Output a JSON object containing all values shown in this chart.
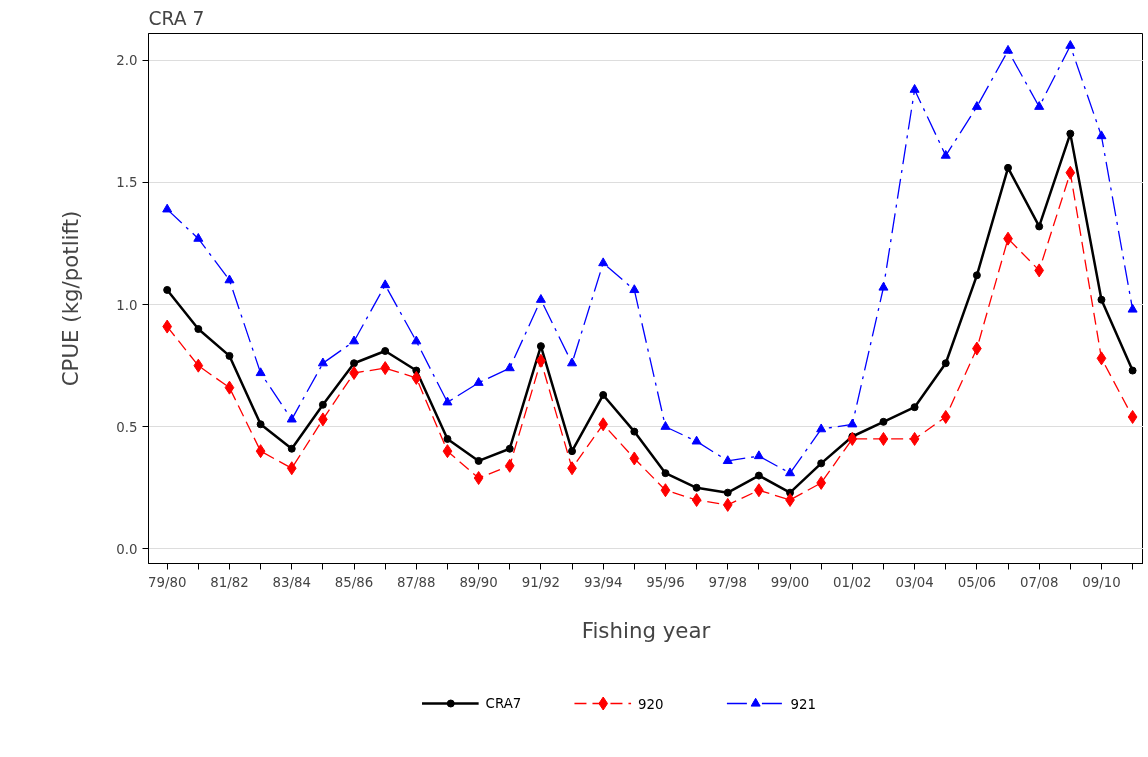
{
  "chart_data": {
    "type": "line",
    "title": "CRA 7",
    "xlabel": "Fishing year",
    "ylabel": "CPUE (kg/potlift)",
    "categories": [
      "79/80",
      null,
      "81/82",
      null,
      "83/84",
      null,
      "85/86",
      null,
      "87/88",
      null,
      "89/90",
      null,
      "91/92",
      null,
      "93/94",
      null,
      "95/96",
      null,
      "97/98",
      null,
      "99/00",
      null,
      "01/02",
      null,
      "03/04",
      null,
      "05/06",
      null,
      "07/08",
      null,
      "09/10",
      null
    ],
    "series": [
      {
        "name": "CRA7",
        "color": "#000000",
        "marker": "circle",
        "line_style": "solid",
        "values": [
          1.06,
          0.9,
          0.79,
          0.51,
          0.41,
          0.59,
          0.76,
          0.81,
          0.73,
          0.45,
          0.36,
          0.41,
          0.83,
          0.4,
          0.63,
          0.48,
          0.31,
          0.25,
          0.23,
          0.3,
          0.23,
          0.35,
          0.46,
          0.52,
          0.58,
          0.76,
          1.12,
          1.56,
          1.32,
          1.7,
          1.02,
          0.73
        ]
      },
      {
        "name": "920",
        "color": "#ff0000",
        "marker": "diamond",
        "line_style": "dashed",
        "values": [
          0.91,
          0.75,
          0.66,
          0.4,
          0.33,
          0.53,
          0.72,
          0.74,
          0.7,
          0.4,
          0.29,
          0.34,
          0.77,
          0.33,
          0.51,
          0.37,
          0.24,
          0.2,
          0.18,
          0.24,
          0.2,
          0.27,
          0.45,
          0.45,
          0.45,
          0.54,
          0.82,
          1.27,
          1.14,
          1.54,
          0.78,
          0.54
        ]
      },
      {
        "name": "921",
        "color": "#0000ff",
        "marker": "triangle",
        "line_style": "dashdot",
        "values": [
          1.39,
          1.27,
          1.1,
          0.72,
          0.53,
          0.76,
          0.85,
          1.08,
          0.85,
          0.6,
          0.68,
          0.74,
          1.02,
          0.76,
          1.17,
          1.06,
          0.5,
          0.44,
          0.36,
          0.38,
          0.31,
          0.49,
          0.51,
          1.07,
          1.88,
          1.61,
          1.81,
          2.04,
          1.81,
          2.06,
          1.69,
          0.98
        ]
      }
    ],
    "ylim": [
      -0.06,
      2.11
    ],
    "yticks": [
      {
        "value": 0,
        "label": "0.0"
      },
      {
        "value": 0.5,
        "label": "0.5"
      },
      {
        "value": 1,
        "label": "1.0"
      },
      {
        "value": 1.5,
        "label": "1.5"
      },
      {
        "value": 2,
        "label": "2.0"
      }
    ],
    "grid": "y",
    "legend": "bottom"
  }
}
